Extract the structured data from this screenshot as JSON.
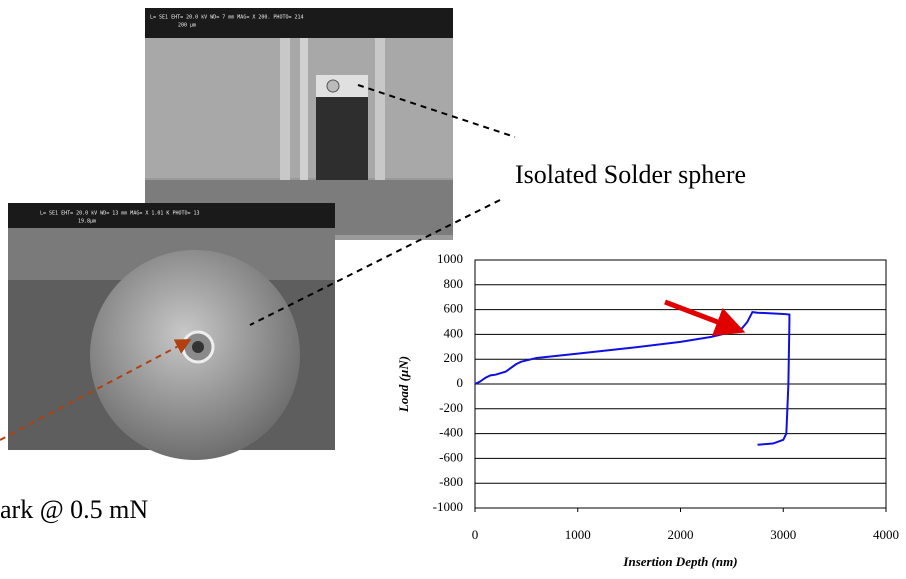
{
  "chart_data": {
    "type": "line",
    "xlabel": "Insertion Depth (nm)",
    "ylabel": "Load (µN)",
    "x": [
      0,
      50,
      100,
      150,
      200,
      300,
      400,
      450,
      600,
      1000,
      1500,
      2000,
      2300,
      2500,
      2600,
      2650,
      2700,
      2750,
      3000,
      3060,
      3060,
      3050,
      3030,
      3000,
      2900,
      2750
    ],
    "values": [
      0,
      20,
      50,
      70,
      75,
      100,
      160,
      180,
      210,
      245,
      290,
      340,
      380,
      420,
      450,
      500,
      580,
      575,
      565,
      560,
      500,
      0,
      -400,
      -450,
      -480,
      -490
    ],
    "color": "#1010e0",
    "xlim": [
      0,
      4000
    ],
    "xticks": [
      0,
      1000,
      2000,
      3000,
      4000
    ],
    "ylim": [
      -1000,
      1000
    ],
    "yticks": [
      -1000,
      -800,
      -600,
      -400,
      -200,
      0,
      200,
      400,
      600,
      800,
      1000
    ],
    "grid": true
  },
  "slide": {
    "label": "Isolated Solder sphere",
    "caption": "ark @ 0.5 mN",
    "sem_images": [
      {
        "header": "L= SE1   EHT= 20.0 kV   WD= 7 mm   MAG= X 200.   PHOTO= 214",
        "scale": "200 µm"
      },
      {
        "header": "L= SE1   EHT= 20.0 kV   WD= 13 mm   MAG= X 1.01 K  PHOTO= 13",
        "scale": "19.8µm"
      }
    ]
  }
}
